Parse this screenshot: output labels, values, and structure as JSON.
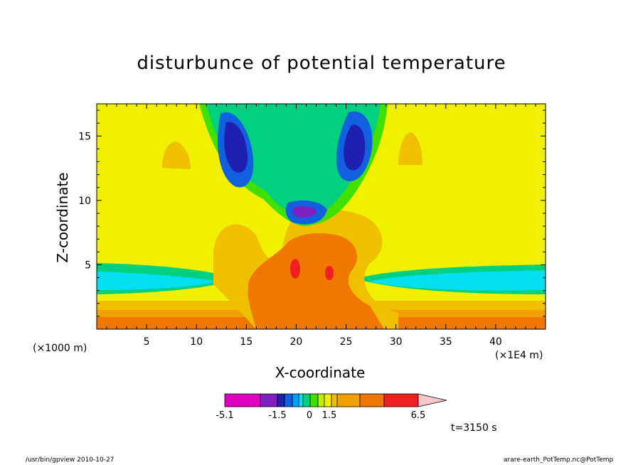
{
  "chart_data": {
    "type": "heatmap",
    "title": "disturbunce of potential temperature",
    "xlabel": "X-coordinate",
    "ylabel": "Z-coordinate",
    "x_scale_note": "(×1000 m)",
    "x_scale_note_right": "(×1E4 m)",
    "xlim": [
      0,
      45
    ],
    "ylim": [
      0,
      17.5
    ],
    "xticks": [
      5,
      10,
      15,
      20,
      25,
      30,
      35,
      40
    ],
    "yticks": [
      5,
      10,
      15
    ],
    "colorbar": {
      "labels": [
        "-5.1",
        "-1.5",
        "0",
        "1.5",
        "6.5"
      ],
      "label_values": [
        -5.1,
        -1.5,
        0,
        1.5,
        6.5
      ],
      "colors": [
        "#e000c0",
        "#8020c0",
        "#2020b0",
        "#1060e0",
        "#00a0ff",
        "#00e0f0",
        "#00d080",
        "#40e000",
        "#c0f000",
        "#f0f000",
        "#f0c000",
        "#f0a000",
        "#f07800",
        "#f02020",
        "#f08080",
        "#f8c8c8"
      ]
    },
    "annotation": "t=3150 s",
    "grid": false
  },
  "footer": {
    "left": "/usr/bin/gpview   2010-10-27",
    "right": "arare-earth_PotTemp.nc@PotTemp"
  }
}
